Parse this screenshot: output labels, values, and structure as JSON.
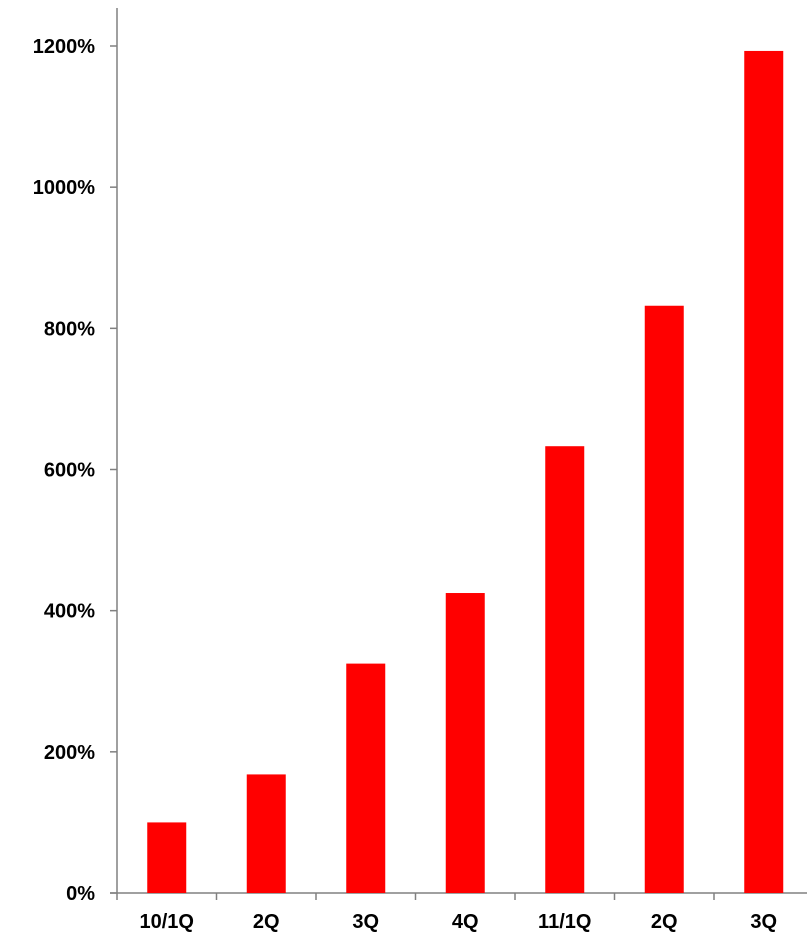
{
  "chart_data": {
    "type": "bar",
    "categories": [
      "10/1Q",
      "2Q",
      "3Q",
      "4Q",
      "11/1Q",
      "2Q",
      "3Q"
    ],
    "values": [
      100,
      168,
      325,
      425,
      633,
      832,
      1193
    ],
    "y_tick_labels": [
      "0%",
      "200%",
      "400%",
      "600%",
      "800%",
      "1000%",
      "1200%"
    ],
    "y_ticks": [
      0,
      200,
      400,
      600,
      800,
      1000,
      1200
    ],
    "ylim": [
      0,
      1200
    ],
    "title": "",
    "xlabel": "",
    "ylabel": "",
    "grid": false,
    "legend": "none",
    "bar_color": "#ff0000",
    "axis_color": "#808080"
  }
}
